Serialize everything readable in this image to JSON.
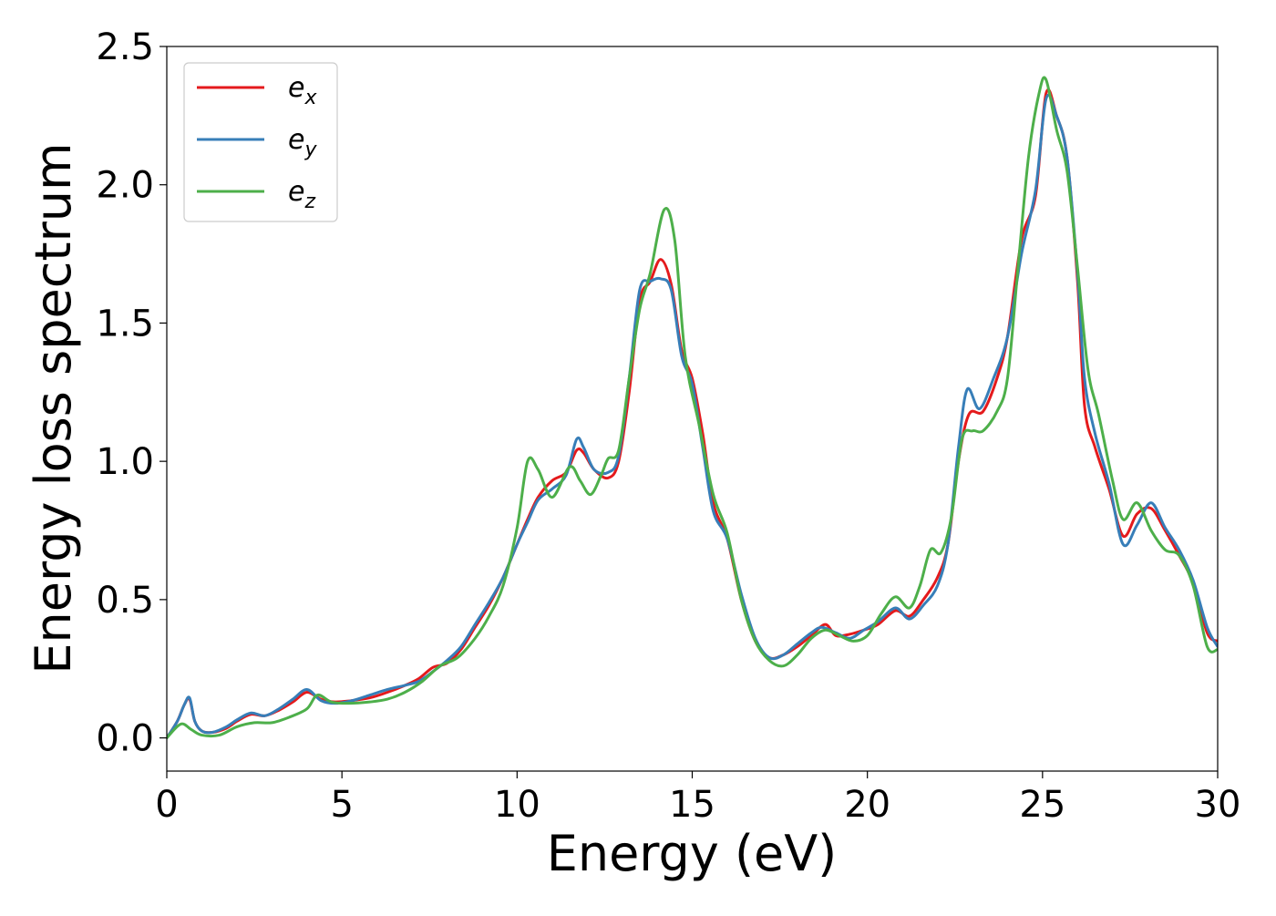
{
  "chart_data": {
    "type": "line",
    "xlabel": "Energy (eV)",
    "ylabel": "Energy loss spectrum",
    "xlim": [
      0,
      30
    ],
    "ylim": [
      -0.12,
      2.5
    ],
    "xticks": [
      0,
      5,
      10,
      15,
      20,
      25,
      30
    ],
    "yticks": [
      0.0,
      0.5,
      1.0,
      1.5,
      2.0,
      2.5
    ],
    "xtick_labels": [
      "0",
      "5",
      "10",
      "15",
      "20",
      "25",
      "30"
    ],
    "ytick_labels": [
      "0.0",
      "0.5",
      "1.0",
      "1.5",
      "2.0",
      "2.5"
    ],
    "grid": false,
    "legend_position": "top-left",
    "series": [
      {
        "name": "e",
        "sub": "x",
        "color": "#e41a1c",
        "points": [
          [
            0,
            0.0
          ],
          [
            0.3,
            0.06
          ],
          [
            0.5,
            0.12
          ],
          [
            0.65,
            0.14
          ],
          [
            0.8,
            0.06
          ],
          [
            1.0,
            0.025
          ],
          [
            1.3,
            0.02
          ],
          [
            1.7,
            0.035
          ],
          [
            2.0,
            0.06
          ],
          [
            2.4,
            0.085
          ],
          [
            2.8,
            0.08
          ],
          [
            3.2,
            0.1
          ],
          [
            3.6,
            0.13
          ],
          [
            4.0,
            0.165
          ],
          [
            4.4,
            0.14
          ],
          [
            4.8,
            0.13
          ],
          [
            5.3,
            0.135
          ],
          [
            5.8,
            0.145
          ],
          [
            6.3,
            0.165
          ],
          [
            6.8,
            0.19
          ],
          [
            7.2,
            0.215
          ],
          [
            7.6,
            0.255
          ],
          [
            8.0,
            0.27
          ],
          [
            8.4,
            0.32
          ],
          [
            8.8,
            0.4
          ],
          [
            9.2,
            0.48
          ],
          [
            9.6,
            0.58
          ],
          [
            10.0,
            0.7
          ],
          [
            10.3,
            0.79
          ],
          [
            10.6,
            0.87
          ],
          [
            11.0,
            0.93
          ],
          [
            11.4,
            0.96
          ],
          [
            11.7,
            1.04
          ],
          [
            11.9,
            1.03
          ],
          [
            12.2,
            0.97
          ],
          [
            12.6,
            0.94
          ],
          [
            12.9,
            1.0
          ],
          [
            13.2,
            1.25
          ],
          [
            13.5,
            1.58
          ],
          [
            13.8,
            1.65
          ],
          [
            14.1,
            1.73
          ],
          [
            14.4,
            1.64
          ],
          [
            14.7,
            1.4
          ],
          [
            15.0,
            1.3
          ],
          [
            15.3,
            1.1
          ],
          [
            15.6,
            0.85
          ],
          [
            16.0,
            0.72
          ],
          [
            16.4,
            0.5
          ],
          [
            16.8,
            0.35
          ],
          [
            17.2,
            0.29
          ],
          [
            17.6,
            0.3
          ],
          [
            18.0,
            0.33
          ],
          [
            18.4,
            0.37
          ],
          [
            18.8,
            0.41
          ],
          [
            19.1,
            0.37
          ],
          [
            19.5,
            0.375
          ],
          [
            19.9,
            0.39
          ],
          [
            20.3,
            0.41
          ],
          [
            20.8,
            0.46
          ],
          [
            21.2,
            0.44
          ],
          [
            21.6,
            0.5
          ],
          [
            22.0,
            0.58
          ],
          [
            22.3,
            0.7
          ],
          [
            22.6,
            1.0
          ],
          [
            22.9,
            1.17
          ],
          [
            23.3,
            1.18
          ],
          [
            23.7,
            1.3
          ],
          [
            24.0,
            1.45
          ],
          [
            24.4,
            1.8
          ],
          [
            24.8,
            1.96
          ],
          [
            25.1,
            2.33
          ],
          [
            25.4,
            2.25
          ],
          [
            25.7,
            2.1
          ],
          [
            26.0,
            1.65
          ],
          [
            26.2,
            1.2
          ],
          [
            26.5,
            1.05
          ],
          [
            26.9,
            0.9
          ],
          [
            27.3,
            0.73
          ],
          [
            27.7,
            0.81
          ],
          [
            28.1,
            0.83
          ],
          [
            28.5,
            0.75
          ],
          [
            28.9,
            0.66
          ],
          [
            29.3,
            0.56
          ],
          [
            29.7,
            0.38
          ],
          [
            30.0,
            0.35
          ]
        ]
      },
      {
        "name": "e",
        "sub": "y",
        "color": "#377eb8",
        "points": [
          [
            0,
            0.0
          ],
          [
            0.3,
            0.06
          ],
          [
            0.5,
            0.12
          ],
          [
            0.65,
            0.145
          ],
          [
            0.8,
            0.06
          ],
          [
            1.0,
            0.025
          ],
          [
            1.3,
            0.02
          ],
          [
            1.7,
            0.04
          ],
          [
            2.0,
            0.065
          ],
          [
            2.4,
            0.09
          ],
          [
            2.8,
            0.08
          ],
          [
            3.2,
            0.105
          ],
          [
            3.6,
            0.14
          ],
          [
            4.0,
            0.175
          ],
          [
            4.4,
            0.135
          ],
          [
            4.8,
            0.125
          ],
          [
            5.3,
            0.135
          ],
          [
            5.8,
            0.155
          ],
          [
            6.3,
            0.175
          ],
          [
            6.8,
            0.19
          ],
          [
            7.2,
            0.205
          ],
          [
            7.6,
            0.24
          ],
          [
            8.0,
            0.28
          ],
          [
            8.4,
            0.33
          ],
          [
            8.8,
            0.41
          ],
          [
            9.2,
            0.49
          ],
          [
            9.6,
            0.58
          ],
          [
            10.0,
            0.7
          ],
          [
            10.3,
            0.78
          ],
          [
            10.6,
            0.86
          ],
          [
            11.0,
            0.9
          ],
          [
            11.4,
            0.95
          ],
          [
            11.7,
            1.08
          ],
          [
            11.9,
            1.05
          ],
          [
            12.2,
            0.97
          ],
          [
            12.6,
            0.96
          ],
          [
            12.9,
            1.02
          ],
          [
            13.2,
            1.3
          ],
          [
            13.5,
            1.62
          ],
          [
            13.8,
            1.65
          ],
          [
            14.1,
            1.66
          ],
          [
            14.4,
            1.62
          ],
          [
            14.7,
            1.38
          ],
          [
            15.0,
            1.28
          ],
          [
            15.3,
            1.05
          ],
          [
            15.6,
            0.82
          ],
          [
            16.0,
            0.72
          ],
          [
            16.4,
            0.52
          ],
          [
            16.8,
            0.36
          ],
          [
            17.2,
            0.29
          ],
          [
            17.6,
            0.3
          ],
          [
            18.0,
            0.34
          ],
          [
            18.4,
            0.38
          ],
          [
            18.7,
            0.4
          ],
          [
            19.1,
            0.38
          ],
          [
            19.5,
            0.36
          ],
          [
            19.9,
            0.39
          ],
          [
            20.3,
            0.42
          ],
          [
            20.8,
            0.47
          ],
          [
            21.2,
            0.43
          ],
          [
            21.6,
            0.48
          ],
          [
            22.0,
            0.55
          ],
          [
            22.3,
            0.7
          ],
          [
            22.6,
            1.05
          ],
          [
            22.85,
            1.26
          ],
          [
            23.2,
            1.19
          ],
          [
            23.6,
            1.3
          ],
          [
            24.0,
            1.45
          ],
          [
            24.4,
            1.75
          ],
          [
            24.8,
            1.98
          ],
          [
            25.1,
            2.31
          ],
          [
            25.4,
            2.25
          ],
          [
            25.7,
            2.1
          ],
          [
            26.0,
            1.68
          ],
          [
            26.2,
            1.3
          ],
          [
            26.5,
            1.1
          ],
          [
            26.9,
            0.92
          ],
          [
            27.3,
            0.7
          ],
          [
            27.7,
            0.77
          ],
          [
            28.1,
            0.85
          ],
          [
            28.5,
            0.76
          ],
          [
            28.9,
            0.68
          ],
          [
            29.3,
            0.57
          ],
          [
            29.7,
            0.4
          ],
          [
            30.0,
            0.33
          ]
        ]
      },
      {
        "name": "e",
        "sub": "z",
        "color": "#4daf4a",
        "points": [
          [
            0,
            0.0
          ],
          [
            0.4,
            0.05
          ],
          [
            0.7,
            0.03
          ],
          [
            1.0,
            0.01
          ],
          [
            1.5,
            0.01
          ],
          [
            2.0,
            0.04
          ],
          [
            2.5,
            0.055
          ],
          [
            3.0,
            0.055
          ],
          [
            3.5,
            0.075
          ],
          [
            4.0,
            0.105
          ],
          [
            4.3,
            0.155
          ],
          [
            4.7,
            0.13
          ],
          [
            5.2,
            0.125
          ],
          [
            5.8,
            0.13
          ],
          [
            6.3,
            0.14
          ],
          [
            6.8,
            0.165
          ],
          [
            7.3,
            0.205
          ],
          [
            7.8,
            0.26
          ],
          [
            8.3,
            0.29
          ],
          [
            8.8,
            0.36
          ],
          [
            9.2,
            0.44
          ],
          [
            9.6,
            0.55
          ],
          [
            10.0,
            0.76
          ],
          [
            10.3,
            1.0
          ],
          [
            10.6,
            0.97
          ],
          [
            11.0,
            0.87
          ],
          [
            11.5,
            0.98
          ],
          [
            11.8,
            0.93
          ],
          [
            12.1,
            0.88
          ],
          [
            12.4,
            0.95
          ],
          [
            12.6,
            1.01
          ],
          [
            12.9,
            1.04
          ],
          [
            13.2,
            1.3
          ],
          [
            13.5,
            1.55
          ],
          [
            13.8,
            1.68
          ],
          [
            14.2,
            1.91
          ],
          [
            14.5,
            1.8
          ],
          [
            14.8,
            1.38
          ],
          [
            15.2,
            1.13
          ],
          [
            15.6,
            0.88
          ],
          [
            16.0,
            0.74
          ],
          [
            16.4,
            0.5
          ],
          [
            16.8,
            0.35
          ],
          [
            17.2,
            0.28
          ],
          [
            17.6,
            0.26
          ],
          [
            18.0,
            0.3
          ],
          [
            18.4,
            0.36
          ],
          [
            18.8,
            0.39
          ],
          [
            19.2,
            0.37
          ],
          [
            19.6,
            0.35
          ],
          [
            20.0,
            0.37
          ],
          [
            20.4,
            0.45
          ],
          [
            20.8,
            0.51
          ],
          [
            21.2,
            0.47
          ],
          [
            21.5,
            0.55
          ],
          [
            21.8,
            0.68
          ],
          [
            22.1,
            0.67
          ],
          [
            22.4,
            0.8
          ],
          [
            22.7,
            1.08
          ],
          [
            23.0,
            1.11
          ],
          [
            23.3,
            1.11
          ],
          [
            23.7,
            1.18
          ],
          [
            24.0,
            1.3
          ],
          [
            24.3,
            1.7
          ],
          [
            24.6,
            2.1
          ],
          [
            24.9,
            2.33
          ],
          [
            25.1,
            2.38
          ],
          [
            25.4,
            2.2
          ],
          [
            25.7,
            2.05
          ],
          [
            26.0,
            1.7
          ],
          [
            26.3,
            1.33
          ],
          [
            26.6,
            1.17
          ],
          [
            27.0,
            0.93
          ],
          [
            27.3,
            0.79
          ],
          [
            27.7,
            0.85
          ],
          [
            28.1,
            0.75
          ],
          [
            28.5,
            0.68
          ],
          [
            28.9,
            0.66
          ],
          [
            29.3,
            0.55
          ],
          [
            29.7,
            0.33
          ],
          [
            30.0,
            0.32
          ]
        ]
      }
    ]
  }
}
